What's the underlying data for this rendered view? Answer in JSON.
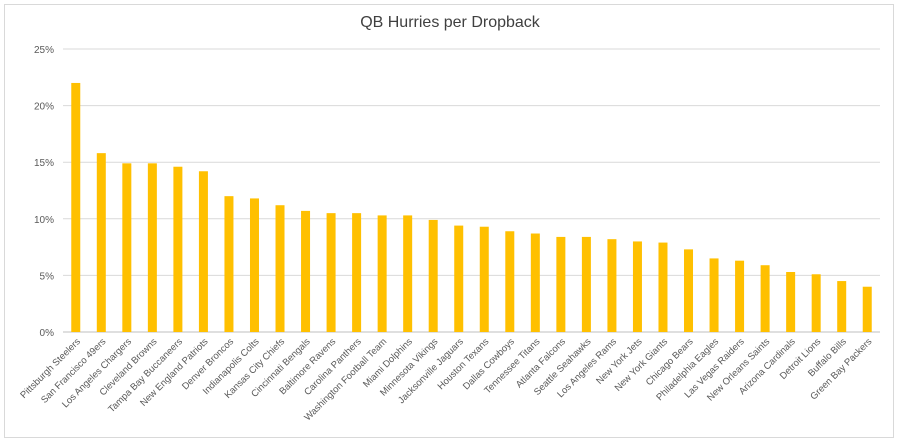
{
  "chart_data": {
    "type": "bar",
    "title": "QB Hurries per Dropback",
    "xlabel": "",
    "ylabel": "",
    "ylim": [
      0,
      25
    ],
    "yticks": [
      "0%",
      "5%",
      "10%",
      "15%",
      "20%",
      "25%"
    ],
    "grid": true,
    "bar_color": "#FFC000",
    "categories": [
      "Pittsburgh Steelers",
      "San Francisco 49ers",
      "Los Angeles Chargers",
      "Cleveland Browns",
      "Tampa Bay Buccaneers",
      "New England Patriots",
      "Denver Broncos",
      "Indianapolis Colts",
      "Kansas City Chiefs",
      "Cincinnati Bengals",
      "Baltimore Ravens",
      "Carolina Panthers",
      "Washington Football Team",
      "Miami Dolphins",
      "Minnesota Vikings",
      "Jacksonville Jaguars",
      "Houston Texans",
      "Dallas Cowboys",
      "Tennessee Titans",
      "Atlanta Falcons",
      "Seattle Seahawks",
      "Los Angeles Rams",
      "New York Jets",
      "New York Giants",
      "Chicago Bears",
      "Philadelphia Eagles",
      "Las Vegas Raiders",
      "New Orleans Saints",
      "Arizona Cardinals",
      "Detroit Lions",
      "Buffalo Bills",
      "Green Bay Packers"
    ],
    "values": [
      22.0,
      15.8,
      14.9,
      14.9,
      14.6,
      14.2,
      12.0,
      11.8,
      11.2,
      10.7,
      10.5,
      10.5,
      10.3,
      10.3,
      9.9,
      9.4,
      9.3,
      8.9,
      8.7,
      8.4,
      8.4,
      8.2,
      8.0,
      7.9,
      7.3,
      6.5,
      6.3,
      5.9,
      5.3,
      5.1,
      4.5,
      4.0
    ]
  }
}
